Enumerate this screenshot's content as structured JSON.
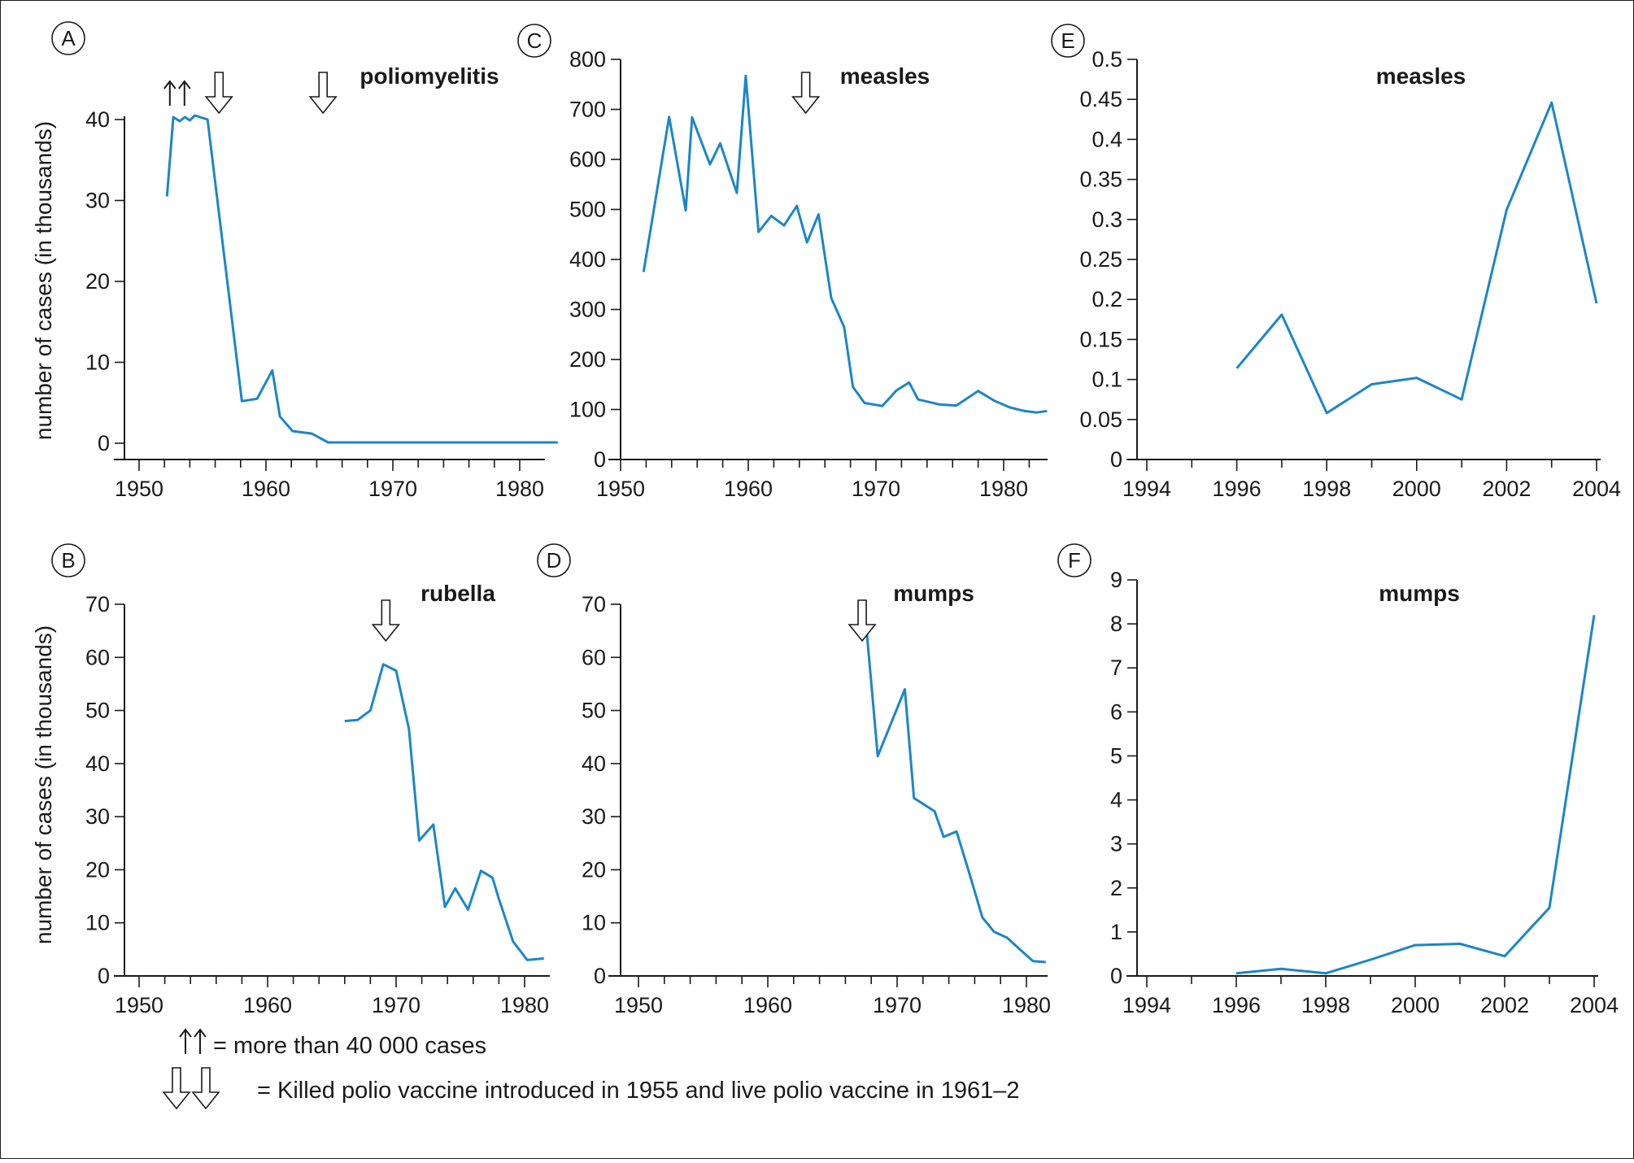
{
  "chart_data": [
    {
      "type": "line",
      "id": "A",
      "badge": "A",
      "title": "poliomyelitis",
      "ylabel": "number of cases (in thousands)",
      "xlim": [
        1950,
        1983
      ],
      "ylim": [
        0,
        40
      ],
      "xticks": [
        1950,
        1960,
        1970,
        1980
      ],
      "yticks": [
        0,
        10,
        20,
        30,
        40
      ],
      "minor_step": 2,
      "x": [
        1952.2,
        1952.7,
        1953.2,
        1953.6,
        1954.0,
        1954.4,
        1955.4,
        1958.1,
        1959.3,
        1960.5,
        1961.1,
        1962.1,
        1963.6,
        1964.9,
        1983
      ],
      "y": [
        30.5,
        40.3,
        39.8,
        40.3,
        39.9,
        40.5,
        40.0,
        5.2,
        5.5,
        9.0,
        3.3,
        1.5,
        1.2,
        0.1,
        0.1
      ],
      "y_range_note": "40+",
      "markers": [
        {
          "kind": "double-up",
          "x": 1953.0
        },
        {
          "kind": "down",
          "x": 1956.3
        },
        {
          "kind": "down",
          "x": 1964.5
        }
      ]
    },
    {
      "type": "line",
      "id": "B",
      "badge": "B",
      "title": "rubella",
      "ylabel": "number of cases (in thousands)",
      "xlim": [
        1950,
        1983
      ],
      "ylim": [
        0,
        70
      ],
      "xticks": [
        1950,
        1960,
        1970,
        1980
      ],
      "yticks": [
        0,
        10,
        20,
        30,
        40,
        50,
        60,
        70
      ],
      "minor_step": 2,
      "x": [
        1966,
        1967,
        1968,
        1969,
        1970,
        1971,
        1971.8,
        1972.9,
        1973.8,
        1974.6,
        1975.6,
        1976.6,
        1977.5,
        1978,
        1979.1,
        1980.2,
        1981.5
      ],
      "y": [
        48,
        48.2,
        50,
        58.7,
        57.5,
        46.5,
        25.5,
        28.5,
        13,
        16.5,
        12.5,
        19.8,
        18.5,
        14.5,
        6.5,
        3,
        3.3
      ],
      "markers": [
        {
          "kind": "down",
          "x": 1969.2
        }
      ]
    },
    {
      "type": "line",
      "id": "C",
      "badge": "C",
      "title": "measles",
      "xlim": [
        1950,
        1983
      ],
      "ylim": [
        0,
        800
      ],
      "xticks": [
        1950,
        1960,
        1970,
        1980
      ],
      "yticks": [
        0,
        100,
        200,
        300,
        400,
        500,
        600,
        700,
        800
      ],
      "minor_step": 2,
      "x": [
        1951.8,
        1953.8,
        1955.1,
        1955.6,
        1957.0,
        1957.8,
        1959.1,
        1959.8,
        1960.8,
        1961.8,
        1962.8,
        1963.8,
        1964.6,
        1965.5,
        1966.5,
        1967.5,
        1968.2,
        1969.1,
        1970.5,
        1971.6,
        1972.6,
        1973.3,
        1975.0,
        1976.3,
        1978.0,
        1979.3,
        1980.5,
        1981.6,
        1982.6,
        1983.4
      ],
      "y": [
        375,
        685,
        498,
        684,
        590,
        632,
        533,
        767,
        455,
        487,
        468,
        507,
        434,
        490,
        323,
        265,
        145,
        113,
        107,
        138,
        154,
        120,
        110,
        108,
        137,
        117,
        104,
        97,
        94,
        97
      ],
      "markers": [
        {
          "kind": "down",
          "x": 1964.5
        }
      ]
    },
    {
      "type": "line",
      "id": "D",
      "badge": "D",
      "title": "mumps",
      "xlim": [
        1948.5,
        1982.5
      ],
      "ylim": [
        0,
        70
      ],
      "xticks": [
        1950,
        1960,
        1970,
        1980
      ],
      "yticks": [
        0,
        10,
        20,
        30,
        40,
        50,
        60,
        70
      ],
      "minor_step": 2,
      "x": [
        1967.6,
        1968.5,
        1970.6,
        1971.3,
        1972.9,
        1973.6,
        1974.6,
        1975.5,
        1976.6,
        1977.5,
        1978.5,
        1979.5,
        1980.5,
        1981.5
      ],
      "y": [
        66.3,
        41.4,
        54.0,
        33.5,
        31.0,
        26.2,
        27.2,
        20.0,
        11.0,
        8.3,
        7.2,
        5.0,
        2.8,
        2.6
      ],
      "markers": [
        {
          "kind": "down",
          "x": 1967.3
        }
      ]
    },
    {
      "type": "line",
      "id": "E",
      "badge": "E",
      "title": "measles",
      "xlim": [
        1994,
        2004
      ],
      "ylim": [
        0,
        0.5
      ],
      "xticks": [
        1994,
        1996,
        1998,
        2000,
        2002,
        2004
      ],
      "yticks": [
        0,
        0.05,
        0.1,
        0.15,
        0.2,
        0.25,
        0.3,
        0.35,
        0.4,
        0.45,
        0.5
      ],
      "ytick_labels": [
        "0",
        "0.05",
        "0.1",
        "0.15",
        "0.2",
        "0.25",
        "0.3",
        "0.35",
        "0.4",
        "0.45",
        "0.5"
      ],
      "minor_step": 1,
      "x": [
        1996,
        1997,
        1998,
        1999,
        2000,
        2001,
        2002,
        2003,
        2004
      ],
      "y": [
        0.114,
        0.181,
        0.058,
        0.094,
        0.102,
        0.075,
        0.312,
        0.446,
        0.195
      ],
      "markers": []
    },
    {
      "type": "line",
      "id": "F",
      "badge": "F",
      "title": "mumps",
      "xlim": [
        1994,
        2004
      ],
      "ylim": [
        0,
        9
      ],
      "xticks": [
        1994,
        1996,
        1998,
        2000,
        2002,
        2004
      ],
      "yticks": [
        0,
        1,
        2,
        3,
        4,
        5,
        6,
        7,
        8,
        9
      ],
      "minor_step": 1,
      "x": [
        1996,
        1997,
        1998,
        1999,
        2000,
        2001,
        2002,
        2003,
        2004
      ],
      "y": [
        0.06,
        0.16,
        0.06,
        0.37,
        0.7,
        0.73,
        0.45,
        1.55,
        8.2
      ],
      "markers": []
    }
  ],
  "legend": {
    "double_up_text": "= more than 40 000 cases",
    "double_down_text": "= Killed polio vaccine introduced in 1955 and live polio vaccine in 1961–2"
  },
  "colors": {
    "line": "#1b86c8",
    "ink": "#1a1a1a"
  }
}
